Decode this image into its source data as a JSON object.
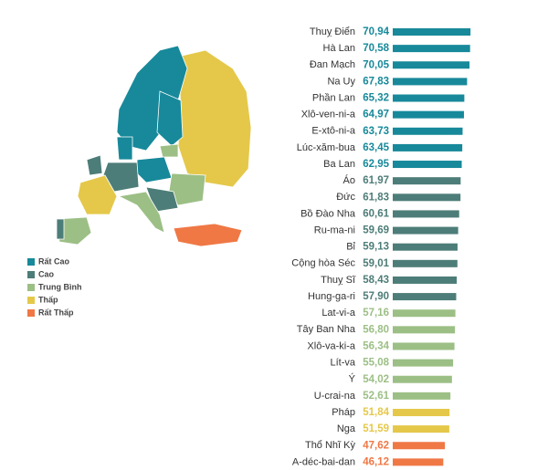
{
  "chart_data": {
    "type": "bar",
    "categories": [
      "Thuỵ Điển",
      "Hà Lan",
      "Đan Mạch",
      "Na Uy",
      "Phần Lan",
      "Xlô-ven-ni-a",
      "E-xtô-ni-a",
      "Lúc-xăm-bua",
      "Ba Lan",
      "Áo",
      "Đức",
      "Bồ Đào Nha",
      "Ru-ma-ni",
      "Bỉ",
      "Cộng hòa Séc",
      "Thuỵ Sĩ",
      "Hung-ga-ri",
      "Lat-vi-a",
      "Tây Ban Nha",
      "Xlô-va-ki-a",
      "Lít-va",
      "Ý",
      "U-crai-na",
      "Pháp",
      "Nga",
      "Thổ Nhĩ Kỳ",
      "A-déc-bai-dan"
    ],
    "values": [
      70.94,
      70.58,
      70.05,
      67.83,
      65.32,
      64.97,
      63.73,
      63.45,
      62.95,
      61.97,
      61.83,
      60.61,
      59.69,
      59.13,
      59.01,
      58.43,
      57.9,
      57.16,
      56.8,
      56.34,
      55.08,
      54.02,
      52.61,
      51.84,
      51.59,
      47.62,
      46.12
    ],
    "value_labels": [
      "70,94",
      "70,58",
      "70,05",
      "67,83",
      "65,32",
      "64,97",
      "63,73",
      "63,45",
      "62,95",
      "61,97",
      "61,83",
      "60,61",
      "59,69",
      "59,13",
      "59,01",
      "58,43",
      "57,90",
      "57,16",
      "56,80",
      "56,34",
      "55,08",
      "54,02",
      "52,61",
      "51,84",
      "51,59",
      "47,62",
      "46,12"
    ],
    "colors": [
      "#17899a",
      "#17899a",
      "#17899a",
      "#17899a",
      "#17899a",
      "#17899a",
      "#17899a",
      "#17899a",
      "#17899a",
      "#4d7d78",
      "#4d7d78",
      "#4d7d78",
      "#4d7d78",
      "#4d7d78",
      "#4d7d78",
      "#4d7d78",
      "#4d7d78",
      "#9cbf85",
      "#9cbf85",
      "#9cbf85",
      "#9cbf85",
      "#9cbf85",
      "#9cbf85",
      "#e5c84a",
      "#e5c84a",
      "#ef7845",
      "#ef7845"
    ],
    "legend": [
      {
        "name": "Rất Cao",
        "color": "#17899a"
      },
      {
        "name": "Cao",
        "color": "#4d7d78"
      },
      {
        "name": "Trung Bình",
        "color": "#9cbf85"
      },
      {
        "name": "Thấp",
        "color": "#e5c84a"
      },
      {
        "name": "Rất Thấp",
        "color": "#ef7845"
      }
    ]
  }
}
